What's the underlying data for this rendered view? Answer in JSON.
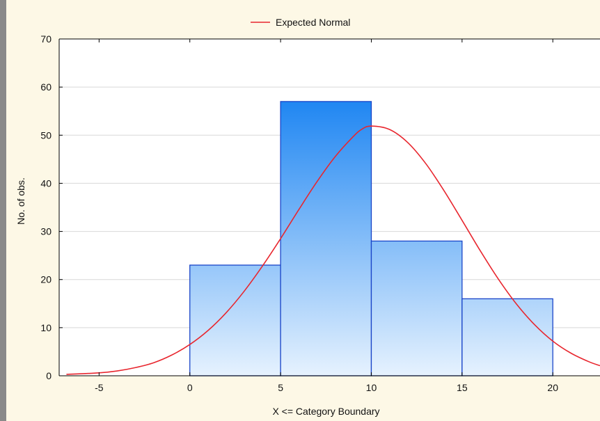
{
  "colors": {
    "background": "#fdf8e6",
    "plot_background": "#ffffff",
    "window_border": "#8a8a8a",
    "gridline": "#d8d8d8",
    "bar_top": "#1f86f2",
    "bar_bottom": "#e6f2fe",
    "bar_edge": "#1a45c8",
    "curve": "#e8262e",
    "axis": "#000000"
  },
  "chart_data": {
    "type": "bar",
    "histogram": true,
    "title": "",
    "xlabel": "X <= Category Boundary",
    "ylabel": "No. of obs.",
    "xlim": [
      -7.2,
      22.6
    ],
    "ylim": [
      0,
      70
    ],
    "xticks": [
      -5,
      0,
      5,
      10,
      15,
      20
    ],
    "yticks": [
      0,
      10,
      20,
      30,
      40,
      50,
      60,
      70
    ],
    "grid": true,
    "legend": {
      "position": "top-center",
      "entries": [
        "Expected Normal"
      ]
    },
    "bins": [
      {
        "from": 0,
        "to": 5,
        "value": 23
      },
      {
        "from": 5,
        "to": 10,
        "value": 57
      },
      {
        "from": 10,
        "to": 15,
        "value": 28
      },
      {
        "from": 15,
        "to": 20,
        "value": 16
      }
    ],
    "series": [
      {
        "name": "Expected Normal",
        "type": "line",
        "x": [
          -6.8,
          -5,
          -4,
          -3,
          -2,
          -1,
          0,
          1,
          2,
          3,
          4,
          5,
          6,
          7,
          8,
          9,
          9.5,
          10,
          11,
          12,
          13,
          14,
          15,
          16,
          17,
          18,
          19,
          20,
          21,
          22,
          22.6
        ],
        "y": [
          0.3,
          0.6,
          1.0,
          1.7,
          2.7,
          4.3,
          6.5,
          9.4,
          13.1,
          17.6,
          22.8,
          28.5,
          34.5,
          40.3,
          45.5,
          49.7,
          51.3,
          51.9,
          51.2,
          48.5,
          44.1,
          38.5,
          32.3,
          26.0,
          20.1,
          14.9,
          10.6,
          7.2,
          4.7,
          2.9,
          2.1
        ]
      }
    ]
  }
}
